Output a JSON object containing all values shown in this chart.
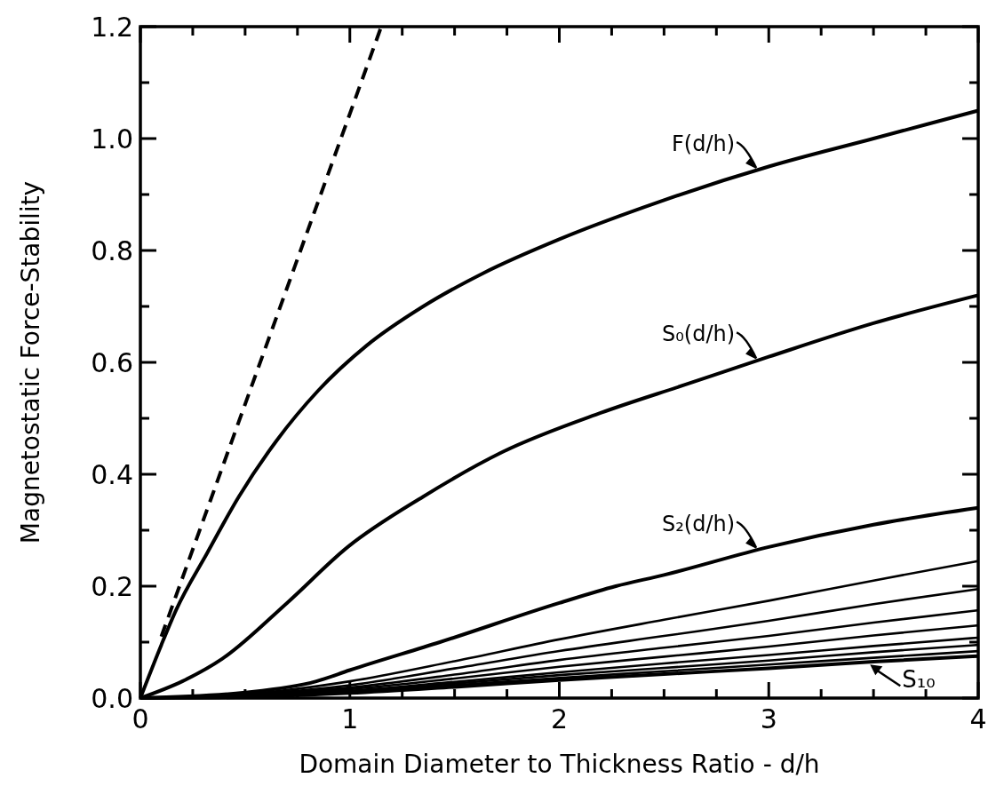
{
  "chart_data": {
    "type": "line",
    "xlabel": "Domain Diameter to Thickness Ratio - d/h",
    "ylabel": "Magnetostatic Force-Stability",
    "xlim": [
      0,
      4
    ],
    "ylim": [
      0,
      1.2
    ],
    "xticks": [
      0,
      {
        "value": 0.25,
        "label": null
      },
      {
        "value": 0.5,
        "label": null
      },
      {
        "value": 0.75,
        "label": null
      },
      1,
      {
        "value": 1.25,
        "label": null
      },
      {
        "value": 1.5,
        "label": null
      },
      {
        "value": 1.75,
        "label": null
      },
      2,
      {
        "value": 2.25,
        "label": null
      },
      {
        "value": 2.5,
        "label": null
      },
      {
        "value": 2.75,
        "label": null
      },
      3,
      {
        "value": 3.25,
        "label": null
      },
      {
        "value": 3.5,
        "label": null
      },
      {
        "value": 3.75,
        "label": null
      },
      4
    ],
    "yticks": [
      {
        "value": 0,
        "label": "0.0"
      },
      {
        "value": 0.1,
        "label": null
      },
      {
        "value": 0.2,
        "label": "0.2"
      },
      {
        "value": 0.3,
        "label": null
      },
      {
        "value": 0.4,
        "label": "0.4"
      },
      {
        "value": 0.5,
        "label": null
      },
      {
        "value": 0.6,
        "label": "0.6"
      },
      {
        "value": 0.7,
        "label": null
      },
      {
        "value": 0.8,
        "label": "0.8"
      },
      {
        "value": 0.9,
        "label": null
      },
      {
        "value": 1.0,
        "label": "1.0"
      },
      {
        "value": 1.1,
        "label": null
      },
      {
        "value": 1.2,
        "label": "1.2"
      }
    ],
    "grid": false,
    "legend": "right",
    "marker": "none",
    "series": [
      {
        "color": "#000000",
        "line_style": "dashed",
        "x": [
          0.1,
          1.15
        ],
        "values": [
          0.11,
          1.2
        ]
      },
      {
        "name": "F(d/h)",
        "color": "#000000",
        "x": [
          0,
          0.1,
          0.17,
          0.32,
          0.47,
          0.65,
          0.85,
          1.08,
          1.35,
          1.64,
          2,
          2.5,
          3,
          3.5,
          4
        ],
        "values": [
          0,
          0.095,
          0.157,
          0.26,
          0.36,
          0.46,
          0.55,
          0.63,
          0.7,
          0.76,
          0.82,
          0.89,
          0.95,
          1.0,
          1.05
        ]
      },
      {
        "name": "S₀(d/h)",
        "color": "#000000",
        "x": [
          0,
          0.2,
          0.39,
          0.7,
          0.99,
          1.35,
          1.73,
          2.2,
          2.6,
          3,
          3.5,
          4
        ],
        "values": [
          0,
          0.03,
          0.07,
          0.17,
          0.27,
          0.36,
          0.44,
          0.51,
          0.56,
          0.61,
          0.67,
          0.72
        ]
      },
      {
        "name": "S₂(d/h)",
        "color": "#000000",
        "x": [
          0,
          0.5,
          0.84,
          1.0,
          1.43,
          2,
          2.27,
          2.5,
          3,
          3.5,
          4
        ],
        "values": [
          0,
          0.01,
          0.03,
          0.05,
          0.1,
          0.17,
          0.2,
          0.22,
          0.27,
          0.31,
          0.34
        ]
      },
      {
        "color": "#000000",
        "x": [
          0,
          0.5,
          1,
          1.5,
          2,
          2.5,
          3,
          3.5,
          4
        ],
        "values": [
          0,
          0.007,
          0.03,
          0.066,
          0.105,
          0.14,
          0.174,
          0.21,
          0.245
        ]
      },
      {
        "color": "#000000",
        "x": [
          0,
          0.5,
          1,
          1.5,
          2,
          2.5,
          3,
          3.5,
          4
        ],
        "values": [
          0,
          0.006,
          0.023,
          0.053,
          0.084,
          0.111,
          0.138,
          0.168,
          0.195
        ]
      },
      {
        "color": "#000000",
        "x": [
          0,
          0.5,
          1,
          1.5,
          2,
          2.5,
          3,
          3.5,
          4
        ],
        "values": [
          0,
          0.005,
          0.019,
          0.042,
          0.068,
          0.09,
          0.111,
          0.135,
          0.157
        ]
      },
      {
        "color": "#000000",
        "x": [
          0,
          0.5,
          1,
          1.5,
          2,
          2.5,
          3,
          3.5,
          4
        ],
        "values": [
          0,
          0.004,
          0.016,
          0.035,
          0.056,
          0.074,
          0.092,
          0.112,
          0.13
        ]
      },
      {
        "color": "#000000",
        "x": [
          0,
          0.5,
          1,
          1.5,
          2,
          2.5,
          3,
          3.5,
          4
        ],
        "values": [
          0,
          0.003,
          0.013,
          0.029,
          0.046,
          0.062,
          0.077,
          0.093,
          0.108
        ]
      },
      {
        "color": "#000000",
        "x": [
          0,
          0.5,
          1,
          1.5,
          2,
          2.5,
          3,
          3.5,
          4
        ],
        "values": [
          0,
          0.003,
          0.011,
          0.026,
          0.041,
          0.054,
          0.067,
          0.082,
          0.095
        ]
      },
      {
        "color": "#000000",
        "x": [
          0,
          0.5,
          1,
          1.5,
          2,
          2.5,
          3,
          3.5,
          4
        ],
        "values": [
          0,
          0.003,
          0.01,
          0.023,
          0.036,
          0.048,
          0.06,
          0.072,
          0.084
        ]
      },
      {
        "name": "S₁₀",
        "color": "#000000",
        "x": [
          0,
          0.5,
          1,
          1.5,
          2,
          2.5,
          3,
          3.5,
          4
        ],
        "values": [
          0,
          0.002,
          0.009,
          0.02,
          0.032,
          0.043,
          0.053,
          0.065,
          0.075
        ]
      }
    ]
  }
}
